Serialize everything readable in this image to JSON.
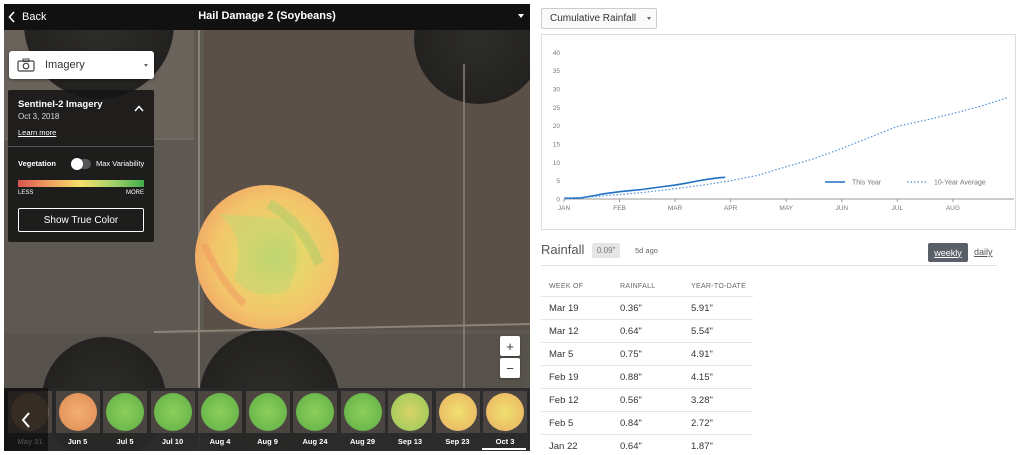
{
  "header": {
    "back_label": "Back",
    "title": "Hail Damage 2 (Soybeans)"
  },
  "imagery_dropdown": {
    "label": "Imagery"
  },
  "imagery_panel": {
    "title": "Sentinel-2 Imagery",
    "date": "Oct 3, 2018",
    "learn_more": "Learn more",
    "vegetation_label": "Vegetation",
    "toggle_label": "Max Variability",
    "legend_less": "LESS",
    "legend_more": "MORE",
    "true_color_button": "Show True Color"
  },
  "map_controls": {
    "zoom_in": "+",
    "zoom_out": "−"
  },
  "timeline": {
    "thumbnails": [
      {
        "label": "May 31",
        "tone": "dim"
      },
      {
        "label": "Jun 5",
        "tone": "orange"
      },
      {
        "label": "Jul 5",
        "tone": "green"
      },
      {
        "label": "Jul 10",
        "tone": "green"
      },
      {
        "label": "Aug 4",
        "tone": "green"
      },
      {
        "label": "Aug 9",
        "tone": "green"
      },
      {
        "label": "Aug 24",
        "tone": "green"
      },
      {
        "label": "Aug 29",
        "tone": "green"
      },
      {
        "label": "Sep 13",
        "tone": "mixed"
      },
      {
        "label": "Sep 23",
        "tone": "yellow"
      },
      {
        "label": "Oct 3",
        "tone": "yellow"
      }
    ],
    "selected": "Oct 3"
  },
  "rainfall_dropdown": {
    "label": "Cumulative Rainfall"
  },
  "chart_data": {
    "type": "line",
    "title": "",
    "xlabel": "",
    "ylabel": "",
    "x_ticks": [
      "JAN",
      "FEB",
      "MAR",
      "APR",
      "MAY",
      "JUN",
      "JUL",
      "AUG"
    ],
    "y_ticks": [
      0,
      5,
      10,
      15,
      20,
      25,
      30,
      35,
      40
    ],
    "ylim": [
      0,
      42
    ],
    "xlim": [
      0,
      8.1
    ],
    "legend_position": "bottom-right",
    "grid": false,
    "series": [
      {
        "name": "This Year",
        "style": "solid",
        "color": "#1f6fc5",
        "x": [
          0,
          0.3,
          0.5,
          0.7,
          1.0,
          1.2,
          1.4,
          1.6,
          1.8,
          2.0,
          2.2,
          2.4,
          2.6,
          2.8,
          2.9
        ],
        "y": [
          0.2,
          0.3,
          0.8,
          1.4,
          2.0,
          2.3,
          2.6,
          3.0,
          3.4,
          3.8,
          4.3,
          4.9,
          5.4,
          5.8,
          5.91
        ]
      },
      {
        "name": "10-Year Average",
        "style": "dotted",
        "color": "#4a90d9",
        "x": [
          0,
          0.5,
          1.0,
          1.5,
          2.0,
          2.5,
          3.0,
          3.5,
          4.0,
          4.5,
          5.0,
          5.5,
          6.0,
          6.5,
          7.0,
          7.5,
          8.0
        ],
        "y": [
          0.1,
          0.6,
          1.2,
          1.9,
          2.8,
          3.8,
          5.0,
          6.5,
          8.8,
          11.0,
          13.8,
          16.8,
          19.8,
          21.5,
          23.3,
          25.3,
          27.7
        ]
      }
    ]
  },
  "rainfall": {
    "title": "Rainfall",
    "latest_value": "0.09\"",
    "latest_ago": "5d ago",
    "weekly_label": "weekly",
    "daily_label": "daily",
    "columns": [
      "WEEK OF",
      "RAINFALL",
      "YEAR-TO-DATE"
    ],
    "rows": [
      {
        "week": "Mar 19",
        "rain": "0.36\"",
        "ytd": "5.91\""
      },
      {
        "week": "Mar 12",
        "rain": "0.64\"",
        "ytd": "5.54\""
      },
      {
        "week": "Mar 5",
        "rain": "0.75\"",
        "ytd": "4.91\""
      },
      {
        "week": "Feb 19",
        "rain": "0.88\"",
        "ytd": "4.15\""
      },
      {
        "week": "Feb 12",
        "rain": "0.56\"",
        "ytd": "3.28\""
      },
      {
        "week": "Feb 5",
        "rain": "0.84\"",
        "ytd": "2.72\""
      },
      {
        "week": "Jan 22",
        "rain": "0.64\"",
        "ytd": "1.87\""
      }
    ]
  }
}
